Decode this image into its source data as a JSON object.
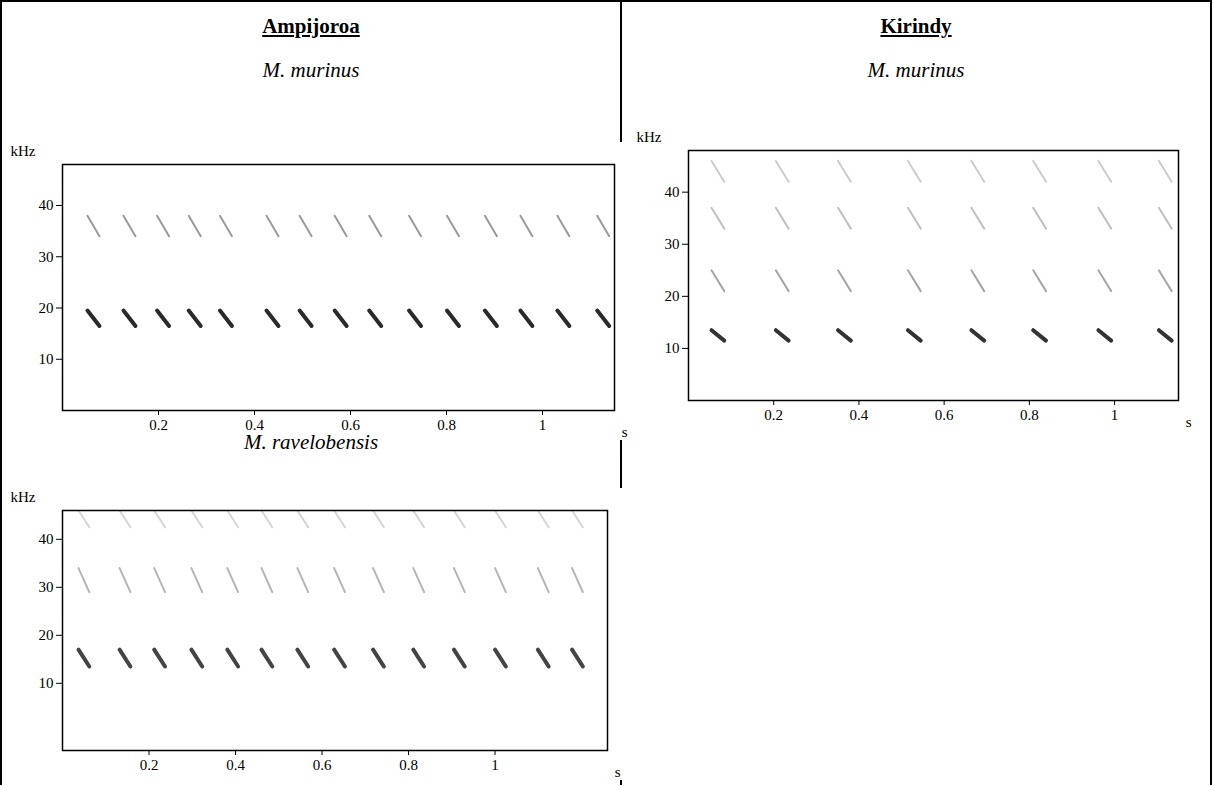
{
  "chart_data": [
    {
      "type": "spectrogram",
      "title": "Ampijoroa",
      "panels": [
        {
          "type": "spectrogram",
          "title": "M. murinus",
          "x_label": "s",
          "y_label": "kHz",
          "xlim": [
            0,
            1.15
          ],
          "xticks": [
            0.2,
            0.4,
            0.6,
            0.8,
            1
          ],
          "ylim": [
            0,
            48
          ],
          "yticks": [
            10,
            20,
            30,
            40
          ],
          "duration": 0.025,
          "harmonics": [
            {
              "start": 19.5,
              "end": 16.5,
              "color": "#2a2a2a"
            },
            {
              "start": 38,
              "end": 34,
              "color": "#9a9a9a"
            }
          ],
          "syllable_times": [
            0.052,
            0.127,
            0.197,
            0.263,
            0.328,
            0.425,
            0.494,
            0.567,
            0.639,
            0.722,
            0.801,
            0.88,
            0.954,
            1.031,
            1.114
          ]
        },
        {
          "type": "spectrogram",
          "title": "M. ravelobensis",
          "x_label": "s",
          "y_label": "kHz",
          "xlim": [
            0,
            1.26
          ],
          "xticks": [
            0.2,
            0.4,
            0.6,
            0.8,
            1
          ],
          "ylim": [
            -4,
            46
          ],
          "yticks": [
            10,
            20,
            30,
            40
          ],
          "duration": 0.025,
          "harmonics": [
            {
              "start": 17,
              "end": 13.5,
              "color": "#444444"
            },
            {
              "start": 34,
              "end": 29,
              "color": "#b5b5b5"
            },
            {
              "start": 46,
              "end": 42.5,
              "color": "#d5d5d5"
            }
          ],
          "syllable_times": [
            0.037,
            0.132,
            0.212,
            0.298,
            0.381,
            0.46,
            0.543,
            0.628,
            0.718,
            0.811,
            0.905,
            1.0,
            1.099,
            1.178
          ]
        }
      ]
    },
    {
      "type": "spectrogram",
      "title": "Kirindy",
      "panels": [
        {
          "type": "spectrogram",
          "title": "M. murinus",
          "x_label": "s",
          "y_label": "kHz",
          "xlim": [
            0,
            1.15
          ],
          "xticks": [
            0.2,
            0.4,
            0.6,
            0.8,
            1
          ],
          "ylim": [
            0,
            48
          ],
          "yticks": [
            10,
            20,
            30,
            40
          ],
          "duration": 0.03,
          "harmonics": [
            {
              "start": 13.5,
              "end": 11.5,
              "color": "#333333"
            },
            {
              "start": 25,
              "end": 21,
              "color": "#a5a5a5"
            },
            {
              "start": 37,
              "end": 33,
              "color": "#c0c0c0"
            },
            {
              "start": 46,
              "end": 42,
              "color": "#cccccc"
            }
          ],
          "syllable_times": [
            0.054,
            0.205,
            0.351,
            0.515,
            0.664,
            0.809,
            0.962,
            1.104
          ]
        }
      ]
    }
  ]
}
